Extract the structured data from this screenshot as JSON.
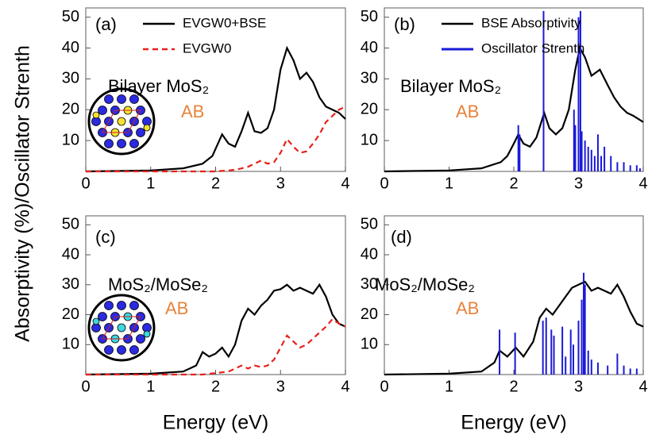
{
  "ylabel": "Absorptivity (%)/Oscillator Strenth",
  "chart_data": [
    {
      "type": "line",
      "annotations": [
        "(a)",
        "Bilayer MoS₂",
        "AB"
      ],
      "xlim": [
        0,
        4
      ],
      "xticks": [
        0,
        1,
        2,
        3,
        4
      ],
      "ylim": [
        0,
        53
      ],
      "yticks": [
        10,
        20,
        30,
        40,
        50
      ],
      "series": [
        {
          "name": "EVGW0+BSE",
          "type": "line",
          "color": "#000000",
          "x": [
            0,
            1,
            1.5,
            1.8,
            1.95,
            2.1,
            2.2,
            2.3,
            2.4,
            2.5,
            2.6,
            2.7,
            2.8,
            2.9,
            3.0,
            3.1,
            3.2,
            3.3,
            3.4,
            3.5,
            3.6,
            3.7,
            3.8,
            3.9,
            4.0
          ],
          "values": [
            0,
            0.3,
            1,
            2.5,
            5,
            12,
            9,
            8,
            13,
            19,
            13,
            12.5,
            14,
            20,
            33,
            40,
            36,
            30,
            32,
            29,
            24,
            21,
            20,
            19,
            17
          ]
        },
        {
          "name": "EVGW0",
          "type": "line",
          "dashed": true,
          "color": "#e8201a",
          "x": [
            0,
            2.0,
            2.3,
            2.5,
            2.6,
            2.7,
            2.8,
            2.9,
            3.0,
            3.1,
            3.2,
            3.3,
            3.4,
            3.5,
            3.6,
            3.7,
            3.8,
            3.9,
            4.0
          ],
          "values": [
            0,
            0,
            0.5,
            1.5,
            2.5,
            3.5,
            2.5,
            3,
            6,
            10.5,
            8,
            6,
            6.5,
            9,
            12,
            16,
            18,
            20,
            21
          ]
        }
      ]
    },
    {
      "type": "line",
      "annotations": [
        "(b)",
        "Bilayer MoS₂",
        "AB"
      ],
      "xlim": [
        0,
        4
      ],
      "xticks": [
        0,
        1,
        2,
        3,
        4
      ],
      "ylim": [
        0,
        53
      ],
      "yticks": [
        10,
        20,
        30,
        40,
        50
      ],
      "series": [
        {
          "name": "BSE Absorptivity",
          "type": "line",
          "color": "#000000",
          "x": [
            0,
            1,
            1.5,
            1.8,
            1.9,
            2.0,
            2.07,
            2.15,
            2.25,
            2.35,
            2.47,
            2.55,
            2.65,
            2.75,
            2.85,
            2.95,
            3.02,
            3.1,
            3.2,
            3.33,
            3.45,
            3.55,
            3.65,
            3.75,
            3.85,
            4.0
          ],
          "values": [
            0,
            0.3,
            1,
            3,
            5,
            9,
            12,
            9,
            8,
            11,
            19,
            14,
            12,
            14,
            20,
            33,
            40,
            37,
            31,
            33,
            28,
            24,
            21,
            19,
            18,
            16
          ]
        },
        {
          "name": "Oscillator Strenth",
          "type": "stem",
          "color": "#1a1ad8",
          "x": [
            2.07,
            2.09,
            2.46,
            2.93,
            2.95,
            3.0,
            3.03,
            3.05,
            3.1,
            3.15,
            3.2,
            3.25,
            3.3,
            3.35,
            3.4,
            3.5,
            3.6,
            3.7,
            3.8,
            3.9,
            3.95
          ],
          "values": [
            15,
            12,
            52,
            20,
            15,
            50,
            52,
            13,
            10,
            8,
            7,
            5,
            12,
            5,
            8,
            5,
            3,
            3,
            2,
            2,
            1
          ]
        }
      ]
    },
    {
      "type": "line",
      "annotations": [
        "(c)",
        "MoS₂/MoSe₂",
        "AB"
      ],
      "xlabel": "Energy (eV)",
      "xlim": [
        0,
        4
      ],
      "xticks": [
        0,
        1,
        2,
        3,
        4
      ],
      "ylim": [
        0,
        53
      ],
      "yticks": [
        10,
        20,
        30,
        40,
        50
      ],
      "series": [
        {
          "type": "line",
          "color": "#000000",
          "x": [
            0,
            1,
            1.5,
            1.7,
            1.8,
            1.9,
            2.0,
            2.1,
            2.2,
            2.3,
            2.4,
            2.5,
            2.6,
            2.7,
            2.8,
            2.9,
            3.0,
            3.1,
            3.2,
            3.3,
            3.4,
            3.5,
            3.6,
            3.7,
            3.8,
            3.9,
            4.0
          ],
          "values": [
            0,
            0.3,
            1,
            3,
            7.5,
            6,
            7,
            9,
            6,
            10,
            18,
            22,
            20,
            23,
            25,
            28,
            28.5,
            30,
            28,
            29,
            28,
            27,
            30,
            26,
            20,
            17,
            16
          ]
        },
        {
          "type": "line",
          "dashed": true,
          "color": "#e8201a",
          "x": [
            0,
            1.8,
            2.2,
            2.4,
            2.5,
            2.6,
            2.7,
            2.8,
            2.9,
            3.0,
            3.1,
            3.2,
            3.3,
            3.4,
            3.5,
            3.6,
            3.7,
            3.8,
            3.9,
            4.0
          ],
          "values": [
            0,
            0,
            1,
            3,
            2,
            3,
            2.5,
            3,
            5,
            9,
            13,
            11,
            9,
            10,
            12,
            14,
            16,
            18.5,
            17,
            16
          ]
        }
      ]
    },
    {
      "type": "line",
      "annotations": [
        "(d)",
        "MoS₂/MoSe₂",
        "AB"
      ],
      "xlabel": "Energy (eV)",
      "xlim": [
        0,
        4
      ],
      "xticks": [
        0,
        1,
        2,
        3,
        4
      ],
      "ylim": [
        0,
        53
      ],
      "yticks": [
        10,
        20,
        30,
        40,
        50
      ],
      "series": [
        {
          "type": "line",
          "color": "#000000",
          "x": [
            0,
            1,
            1.5,
            1.7,
            1.78,
            1.9,
            2.03,
            2.15,
            2.3,
            2.4,
            2.5,
            2.6,
            2.7,
            2.8,
            2.9,
            3.0,
            3.1,
            3.2,
            3.3,
            3.4,
            3.5,
            3.6,
            3.7,
            3.8,
            3.9,
            4.0
          ],
          "values": [
            0,
            0.3,
            1,
            4,
            8,
            6,
            9,
            6,
            11,
            19,
            22,
            20,
            23,
            26,
            29,
            30,
            31,
            28,
            29,
            28,
            27,
            30,
            26,
            21,
            17,
            16
          ]
        },
        {
          "type": "stem",
          "color": "#1a1ad8",
          "x": [
            1.78,
            2.02,
            2.45,
            2.5,
            2.58,
            2.62,
            2.75,
            2.8,
            2.88,
            2.92,
            3.0,
            3.05,
            3.08,
            3.1,
            3.15,
            3.2,
            3.3,
            3.45,
            3.6,
            3.7,
            3.8,
            3.9
          ],
          "values": [
            15,
            14,
            18,
            19,
            15,
            13,
            16,
            6,
            15,
            10,
            18,
            25,
            34,
            30,
            8,
            5,
            4,
            3,
            7,
            3,
            2,
            2
          ]
        }
      ]
    }
  ]
}
